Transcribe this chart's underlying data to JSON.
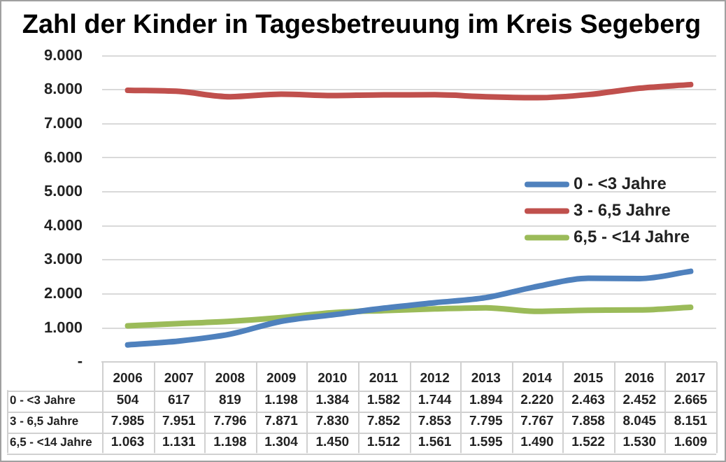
{
  "chart_data": {
    "type": "line",
    "title": "Zahl der Kinder in Tagesbetreuung im Kreis Segeberg",
    "categories": [
      "2006",
      "2007",
      "2008",
      "2009",
      "2010",
      "2011",
      "2012",
      "2013",
      "2014",
      "2015",
      "2016",
      "2017"
    ],
    "series": [
      {
        "name": "0 - <3 Jahre",
        "color": "#4f81bd",
        "values": [
          504,
          617,
          819,
          1198,
          1384,
          1582,
          1744,
          1894,
          2220,
          2463,
          2452,
          2665
        ],
        "value_labels": [
          "504",
          "617",
          "819",
          "1.198",
          "1.384",
          "1.582",
          "1.744",
          "1.894",
          "2.220",
          "2.463",
          "2.452",
          "2.665"
        ]
      },
      {
        "name": "3 - 6,5 Jahre",
        "color": "#c0504d",
        "values": [
          7985,
          7951,
          7796,
          7871,
          7830,
          7852,
          7853,
          7795,
          7767,
          7858,
          8045,
          8151
        ],
        "value_labels": [
          "7.985",
          "7.951",
          "7.796",
          "7.871",
          "7.830",
          "7.852",
          "7.853",
          "7.795",
          "7.767",
          "7.858",
          "8.045",
          "8.151"
        ]
      },
      {
        "name": "6,5 - <14 Jahre",
        "color": "#9bbb59",
        "values": [
          1063,
          1131,
          1198,
          1304,
          1450,
          1512,
          1561,
          1595,
          1490,
          1522,
          1530,
          1609
        ],
        "value_labels": [
          "1.063",
          "1.131",
          "1.198",
          "1.304",
          "1.450",
          "1.512",
          "1.561",
          "1.595",
          "1.490",
          "1.522",
          "1.530",
          "1.609"
        ]
      }
    ],
    "ylim": [
      0,
      9000
    ],
    "yticks": [
      {
        "value": 0,
        "label": "-"
      },
      {
        "value": 1000,
        "label": "1.000"
      },
      {
        "value": 2000,
        "label": "2.000"
      },
      {
        "value": 3000,
        "label": "3.000"
      },
      {
        "value": 4000,
        "label": "4.000"
      },
      {
        "value": 5000,
        "label": "5.000"
      },
      {
        "value": 6000,
        "label": "6.000"
      },
      {
        "value": 7000,
        "label": "7.000"
      },
      {
        "value": 8000,
        "label": "8.000"
      },
      {
        "value": 9000,
        "label": "9.000"
      }
    ],
    "grid": "y",
    "legend": "right",
    "marker": "none",
    "line_style": "solid"
  }
}
